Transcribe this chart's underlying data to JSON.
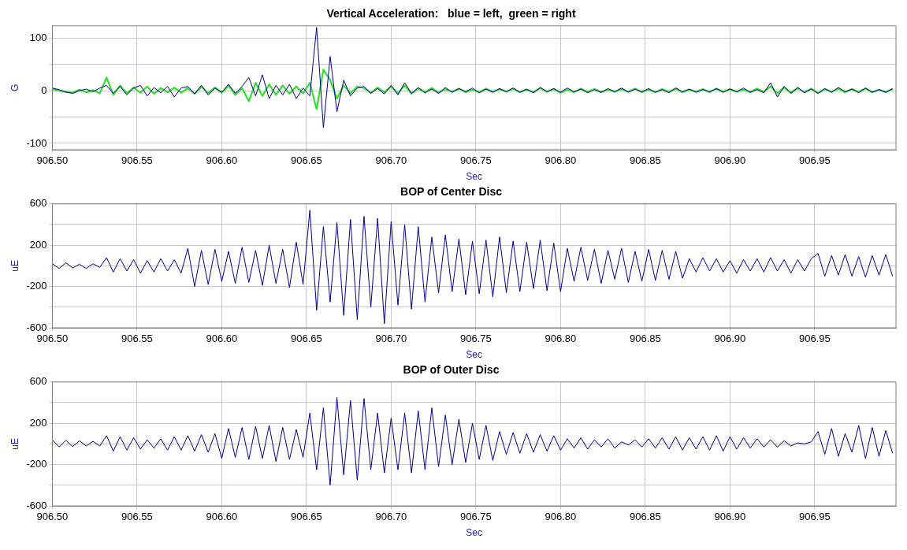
{
  "chart_data": [
    {
      "type": "line",
      "title": "Vertical Acceleration:   blue = left,  green = right",
      "xlabel": "Sec",
      "ylabel": "G",
      "x": [
        906.5,
        906.504,
        906.508,
        906.512,
        906.516,
        906.52,
        906.524,
        906.528,
        906.532,
        906.536,
        906.54,
        906.544,
        906.548,
        906.552,
        906.556,
        906.56,
        906.564,
        906.568,
        906.572,
        906.576,
        906.58,
        906.584,
        906.588,
        906.592,
        906.596,
        906.6,
        906.604,
        906.608,
        906.612,
        906.616,
        906.62,
        906.624,
        906.628,
        906.632,
        906.636,
        906.64,
        906.644,
        906.648,
        906.652,
        906.656,
        906.66,
        906.664,
        906.668,
        906.672,
        906.676,
        906.68,
        906.684,
        906.688,
        906.692,
        906.696,
        906.7,
        906.704,
        906.708,
        906.712,
        906.716,
        906.72,
        906.724,
        906.728,
        906.732,
        906.736,
        906.74,
        906.744,
        906.748,
        906.752,
        906.756,
        906.76,
        906.764,
        906.768,
        906.772,
        906.776,
        906.78,
        906.784,
        906.788,
        906.792,
        906.796,
        906.8,
        906.804,
        906.808,
        906.812,
        906.816,
        906.82,
        906.824,
        906.828,
        906.832,
        906.836,
        906.84,
        906.844,
        906.848,
        906.852,
        906.856,
        906.86,
        906.864,
        906.868,
        906.872,
        906.876,
        906.88,
        906.884,
        906.888,
        906.892,
        906.896,
        906.9,
        906.904,
        906.908,
        906.912,
        906.916,
        906.92,
        906.924,
        906.928,
        906.932,
        906.936,
        906.94,
        906.944,
        906.948,
        906.952,
        906.956,
        906.96,
        906.964,
        906.968,
        906.972,
        906.976,
        906.98,
        906.984,
        906.988,
        906.992,
        906.996
      ],
      "series": [
        {
          "color": "#00008b",
          "values": [
            5,
            2,
            -3,
            -5,
            0,
            3,
            -2,
            5,
            10,
            -5,
            8,
            -8,
            5,
            10,
            -10,
            6,
            -4,
            8,
            -12,
            5,
            8,
            -6,
            10,
            -8,
            5,
            -3,
            12,
            -5,
            8,
            25,
            -10,
            30,
            -15,
            10,
            -8,
            12,
            -15,
            5,
            -10,
            120,
            -70,
            65,
            -40,
            20,
            -10,
            5,
            8,
            -5,
            4,
            -6,
            10,
            -8,
            15,
            -5,
            6,
            -4,
            3,
            -5,
            6,
            -3,
            4,
            -2,
            5,
            -4,
            3,
            -3,
            4,
            -2,
            5,
            -3,
            3,
            -4,
            6,
            -2,
            4,
            -3,
            5,
            -2,
            3,
            -4,
            2,
            -3,
            4,
            -2,
            5,
            -3,
            3,
            -2,
            4,
            -3,
            2,
            -4,
            5,
            -2,
            3,
            -3,
            2,
            -2,
            4,
            -3,
            3,
            -2,
            5,
            -3,
            2,
            -4,
            15,
            -12,
            8,
            -5,
            6,
            -4,
            3,
            -5,
            4,
            -3,
            6,
            -2,
            3,
            -4,
            5,
            -3,
            2,
            -3,
            4
          ]
        },
        {
          "color": "#33dd33",
          "values": [
            3,
            0,
            -2,
            -4,
            2,
            -3,
            1,
            -5,
            25,
            -8,
            10,
            -5,
            6,
            -4,
            8,
            -6,
            5,
            -3,
            6,
            -4,
            5,
            -6,
            8,
            -5,
            6,
            -4,
            10,
            -8,
            5,
            -20,
            15,
            -10,
            12,
            -8,
            10,
            -6,
            8,
            -5,
            15,
            -35,
            40,
            20,
            -15,
            10,
            -5,
            8,
            5,
            -4,
            6,
            -3,
            8,
            -5,
            10,
            -6,
            4,
            -3,
            5,
            -4,
            3,
            -2,
            4,
            -3,
            2,
            -3,
            4,
            -2,
            3,
            -2,
            4,
            -3,
            2,
            -3,
            5,
            -2,
            3,
            -4,
            2,
            -3,
            4,
            -2,
            3,
            -3,
            2,
            -2,
            3,
            -2,
            4,
            -3,
            2,
            -3,
            3,
            -2,
            4,
            -3,
            2,
            -2,
            3,
            -3,
            4,
            -2,
            3,
            -2,
            2,
            -3,
            4,
            -2,
            8,
            -5,
            6,
            -4,
            5,
            -3,
            4,
            -5,
            3,
            -2,
            4,
            -3,
            3,
            -2,
            4,
            -3,
            2,
            -3,
            3
          ]
        }
      ],
      "xlim": [
        906.5,
        906.998
      ],
      "xticks": [
        {
          "value": 906.5,
          "label": "906.50"
        },
        {
          "value": 906.55,
          "label": "906.55"
        },
        {
          "value": 906.6,
          "label": "906.60"
        },
        {
          "value": 906.65,
          "label": "906.65"
        },
        {
          "value": 906.7,
          "label": "906.70"
        },
        {
          "value": 906.75,
          "label": "906.75"
        },
        {
          "value": 906.8,
          "label": "906.80"
        },
        {
          "value": 906.85,
          "label": "906.85"
        },
        {
          "value": 906.9,
          "label": "906.90"
        },
        {
          "value": 906.95,
          "label": "906.95"
        }
      ],
      "ylim": [
        -112,
        123
      ],
      "yticks": [
        -100,
        {
          "value": -50,
          "label": null
        },
        0,
        {
          "value": 50,
          "label": null
        },
        100
      ],
      "grid": true
    },
    {
      "type": "line",
      "title": "BOP of Center Disc",
      "xlabel": "Sec",
      "ylabel": "uE",
      "x": [
        906.5,
        906.504,
        906.508,
        906.512,
        906.516,
        906.52,
        906.524,
        906.528,
        906.532,
        906.536,
        906.54,
        906.544,
        906.548,
        906.552,
        906.556,
        906.56,
        906.564,
        906.568,
        906.572,
        906.576,
        906.58,
        906.584,
        906.588,
        906.592,
        906.596,
        906.6,
        906.604,
        906.608,
        906.612,
        906.616,
        906.62,
        906.624,
        906.628,
        906.632,
        906.636,
        906.64,
        906.644,
        906.648,
        906.652,
        906.656,
        906.66,
        906.664,
        906.668,
        906.672,
        906.676,
        906.68,
        906.684,
        906.688,
        906.692,
        906.696,
        906.7,
        906.704,
        906.708,
        906.712,
        906.716,
        906.72,
        906.724,
        906.728,
        906.732,
        906.736,
        906.74,
        906.744,
        906.748,
        906.752,
        906.756,
        906.76,
        906.764,
        906.768,
        906.772,
        906.776,
        906.78,
        906.784,
        906.788,
        906.792,
        906.796,
        906.8,
        906.804,
        906.808,
        906.812,
        906.816,
        906.82,
        906.824,
        906.828,
        906.832,
        906.836,
        906.84,
        906.844,
        906.848,
        906.852,
        906.856,
        906.86,
        906.864,
        906.868,
        906.872,
        906.876,
        906.88,
        906.884,
        906.888,
        906.892,
        906.896,
        906.9,
        906.904,
        906.908,
        906.912,
        906.916,
        906.92,
        906.924,
        906.928,
        906.932,
        906.936,
        906.94,
        906.944,
        906.948,
        906.952,
        906.956,
        906.96,
        906.964,
        906.968,
        906.972,
        906.976,
        906.98,
        906.984,
        906.988,
        906.992,
        906.996
      ],
      "series": [
        {
          "color": "#00008b",
          "values": [
            20,
            -25,
            30,
            -20,
            15,
            -25,
            20,
            -15,
            80,
            -60,
            70,
            -50,
            60,
            -70,
            50,
            -60,
            70,
            -50,
            60,
            -70,
            170,
            -200,
            150,
            -180,
            160,
            -150,
            140,
            -170,
            180,
            -160,
            150,
            -190,
            200,
            -170,
            160,
            -210,
            230,
            -180,
            540,
            -430,
            380,
            -350,
            420,
            -480,
            450,
            -520,
            480,
            -400,
            460,
            -560,
            430,
            -380,
            400,
            -420,
            380,
            -350,
            280,
            -260,
            300,
            -250,
            260,
            -280,
            240,
            -270,
            250,
            -300,
            280,
            -260,
            240,
            -250,
            230,
            -220,
            250,
            -240,
            220,
            -250,
            170,
            -150,
            180,
            -140,
            160,
            -170,
            150,
            -130,
            170,
            -160,
            140,
            -150,
            160,
            -140,
            150,
            -130,
            140,
            -120,
            70,
            -60,
            80,
            -50,
            70,
            -60,
            50,
            -70,
            60,
            -50,
            70,
            -60,
            80,
            -50,
            60,
            -70,
            60,
            -50,
            70,
            120,
            -100,
            100,
            -90,
            110,
            -100,
            90,
            -110,
            100,
            -90,
            110,
            -100
          ]
        }
      ],
      "xlim": [
        906.5,
        906.998
      ],
      "xticks": [
        {
          "value": 906.5,
          "label": "906.50"
        },
        {
          "value": 906.55,
          "label": "906.55"
        },
        {
          "value": 906.6,
          "label": "906.60"
        },
        {
          "value": 906.65,
          "label": "906.65"
        },
        {
          "value": 906.7,
          "label": "906.70"
        },
        {
          "value": 906.75,
          "label": "906.75"
        },
        {
          "value": 906.8,
          "label": "906.80"
        },
        {
          "value": 906.85,
          "label": "906.85"
        },
        {
          "value": 906.9,
          "label": "906.90"
        },
        {
          "value": 906.95,
          "label": "906.95"
        }
      ],
      "ylim": [
        -600,
        600
      ],
      "yticks": [
        -600,
        {
          "value": -400,
          "label": null
        },
        -200,
        {
          "value": 0,
          "label": null
        },
        200,
        {
          "value": 400,
          "label": null
        },
        600
      ],
      "grid": true
    },
    {
      "type": "line",
      "title": "BOP of Outer Disc",
      "xlabel": "Sec",
      "ylabel": "uE",
      "x": [
        906.5,
        906.504,
        906.508,
        906.512,
        906.516,
        906.52,
        906.524,
        906.528,
        906.532,
        906.536,
        906.54,
        906.544,
        906.548,
        906.552,
        906.556,
        906.56,
        906.564,
        906.568,
        906.572,
        906.576,
        906.58,
        906.584,
        906.588,
        906.592,
        906.596,
        906.6,
        906.604,
        906.608,
        906.612,
        906.616,
        906.62,
        906.624,
        906.628,
        906.632,
        906.636,
        906.64,
        906.644,
        906.648,
        906.652,
        906.656,
        906.66,
        906.664,
        906.668,
        906.672,
        906.676,
        906.68,
        906.684,
        906.688,
        906.692,
        906.696,
        906.7,
        906.704,
        906.708,
        906.712,
        906.716,
        906.72,
        906.724,
        906.728,
        906.732,
        906.736,
        906.74,
        906.744,
        906.748,
        906.752,
        906.756,
        906.76,
        906.764,
        906.768,
        906.772,
        906.776,
        906.78,
        906.784,
        906.788,
        906.792,
        906.796,
        906.8,
        906.804,
        906.808,
        906.812,
        906.816,
        906.82,
        906.824,
        906.828,
        906.832,
        906.836,
        906.84,
        906.844,
        906.848,
        906.852,
        906.856,
        906.86,
        906.864,
        906.868,
        906.872,
        906.876,
        906.88,
        906.884,
        906.888,
        906.892,
        906.896,
        906.9,
        906.904,
        906.908,
        906.912,
        906.916,
        906.92,
        906.924,
        906.928,
        906.932,
        906.936,
        906.94,
        906.944,
        906.948,
        906.952,
        906.956,
        906.96,
        906.964,
        906.968,
        906.972,
        906.976,
        906.98,
        906.984,
        906.988,
        906.992,
        906.996
      ],
      "series": [
        {
          "color": "#00008b",
          "values": [
            40,
            -30,
            35,
            -25,
            30,
            -20,
            25,
            -20,
            80,
            -70,
            70,
            -60,
            60,
            -50,
            40,
            -40,
            50,
            -60,
            70,
            -60,
            80,
            -70,
            90,
            -80,
            100,
            -140,
            150,
            -130,
            160,
            -150,
            170,
            -140,
            180,
            -170,
            160,
            -150,
            140,
            -130,
            300,
            -250,
            350,
            -400,
            450,
            -300,
            420,
            -350,
            440,
            -250,
            300,
            -280,
            250,
            -250,
            300,
            -280,
            320,
            -250,
            350,
            -220,
            280,
            -200,
            240,
            -180,
            200,
            -150,
            180,
            -160,
            120,
            -100,
            110,
            -90,
            100,
            -80,
            90,
            -70,
            80,
            -60,
            50,
            -40,
            60,
            -50,
            40,
            -30,
            50,
            -40,
            20,
            -10,
            40,
            -30,
            50,
            -40,
            60,
            -50,
            70,
            -60,
            60,
            -50,
            70,
            -60,
            80,
            -70,
            70,
            -50,
            60,
            -40,
            50,
            -30,
            40,
            -30,
            30,
            -20,
            10,
            0,
            20,
            120,
            -100,
            150,
            -120,
            100,
            -80,
            180,
            -140,
            160,
            -120,
            130,
            -90
          ]
        }
      ],
      "xlim": [
        906.5,
        906.998
      ],
      "xticks": [
        {
          "value": 906.5,
          "label": "906.50"
        },
        {
          "value": 906.55,
          "label": "906.55"
        },
        {
          "value": 906.6,
          "label": "906.60"
        },
        {
          "value": 906.65,
          "label": "906.65"
        },
        {
          "value": 906.7,
          "label": "906.70"
        },
        {
          "value": 906.75,
          "label": "906.75"
        },
        {
          "value": 906.8,
          "label": "906.80"
        },
        {
          "value": 906.85,
          "label": "906.85"
        },
        {
          "value": 906.9,
          "label": "906.90"
        },
        {
          "value": 906.95,
          "label": "906.95"
        }
      ],
      "ylim": [
        -600,
        600
      ],
      "yticks": [
        -600,
        {
          "value": -400,
          "label": null
        },
        -200,
        {
          "value": 0,
          "label": null
        },
        200,
        {
          "value": 400,
          "label": null
        },
        600
      ],
      "grid": true
    }
  ]
}
